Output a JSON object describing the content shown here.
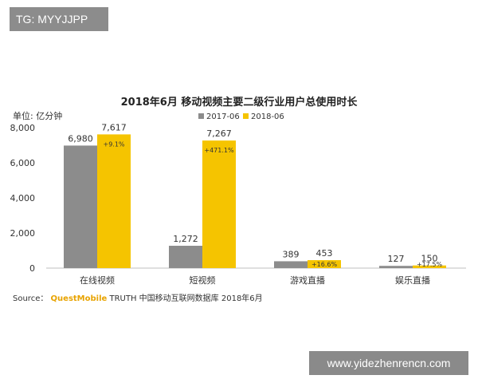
{
  "watermark_top": "TG: MYYJJPP",
  "watermark_bottom": "www.yidezhenrencn.com",
  "unit_label": "单位: 亿分钟",
  "source": {
    "prefix": "Source：",
    "brand": "QuestMobile",
    "suffix": "TRUTH 中国移动互联网数据库 2018年6月"
  },
  "colors": {
    "s2017": "#8c8c8c",
    "s2018": "#f5c400"
  },
  "chart_data": {
    "type": "bar",
    "title": "2018年6月 移动视频主要二级行业用户总使用时长",
    "ylabel": "单位: 亿分钟",
    "ylim": [
      0,
      8000
    ],
    "yticks": [
      "8,000",
      "6,000",
      "4,000",
      "2,000",
      "0"
    ],
    "ytick_values": [
      8000,
      6000,
      4000,
      2000,
      0
    ],
    "categories": [
      "在线视频",
      "短视频",
      "游戏直播",
      "娱乐直播"
    ],
    "series": [
      {
        "name": "2017-06",
        "values": [
          6980,
          1272,
          389,
          127
        ],
        "labels": [
          "6,980",
          "1,272",
          "389",
          "127"
        ]
      },
      {
        "name": "2018-06",
        "values": [
          7617,
          7267,
          453,
          150
        ],
        "labels": [
          "7,617",
          "7,267",
          "453",
          "150"
        ]
      }
    ],
    "growth": [
      "+9.1%",
      "+471.1%",
      "+16.6%",
      "+17.5%"
    ],
    "legend_position": "top",
    "grid": false
  }
}
